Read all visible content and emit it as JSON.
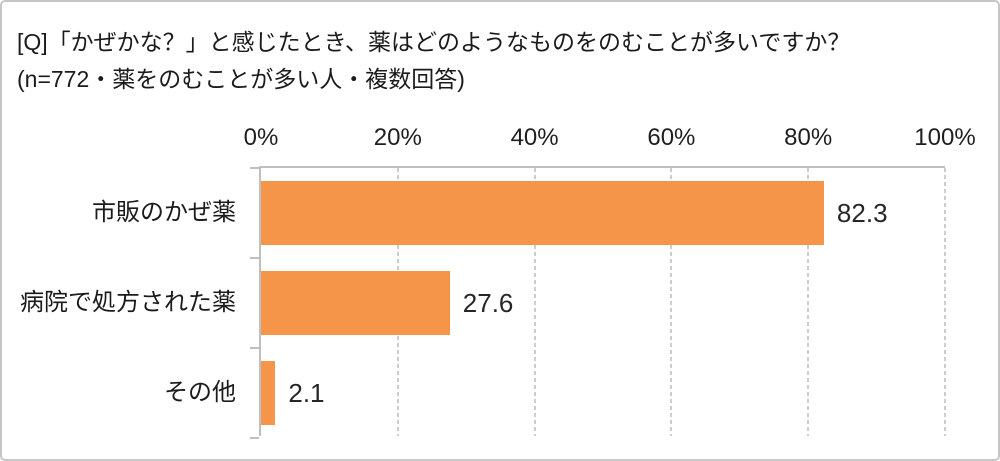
{
  "header": {
    "title": "[Q]「かぜかな？」と感じたとき、薬はどのようなものをのむことが多いですか？",
    "subtitle": "(n=772・薬をのむことが多い人・複数回答)"
  },
  "chart_data": {
    "type": "bar",
    "orientation": "horizontal",
    "categories": [
      "市販のかぜ薬",
      "病院で処方された薬",
      "その他"
    ],
    "values": [
      82.3,
      27.6,
      2.1
    ],
    "value_labels": [
      "82.3",
      "27.6",
      "2.1"
    ],
    "x_ticks": [
      "0%",
      "20%",
      "40%",
      "60%",
      "80%",
      "100%"
    ],
    "xlim": [
      0,
      100
    ],
    "xlabel": "",
    "ylabel": "",
    "title": "",
    "legend_position": "none",
    "grid": "vertical-dashed",
    "bar_color": "#f4954a",
    "axis_color": "#bfbfbf",
    "gridline_color": "#cccccc"
  }
}
